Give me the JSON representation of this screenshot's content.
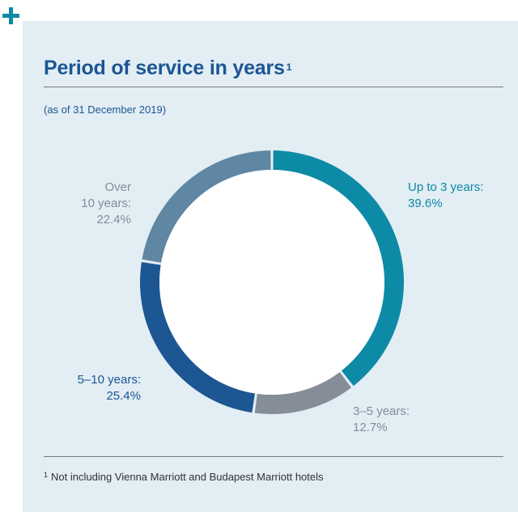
{
  "title": "Period of service in years",
  "title_footnote_ref": "1",
  "subtitle": "(as of 31 December 2019)",
  "footnote_ref": "1",
  "footnote": "Not including Vienna Marriott and Budapest Marriott hotels",
  "chart_data": {
    "type": "pie",
    "donut": true,
    "categories": [
      "Up to 3 years",
      "3–5 years",
      "5–10 years",
      "Over 10 years"
    ],
    "values": [
      39.6,
      12.7,
      25.4,
      22.4
    ],
    "unit": "%",
    "colors": [
      "#0d8aa6",
      "#858d98",
      "#1c5693",
      "#5f86a2"
    ],
    "label_colors": [
      "#0d8aa6",
      "#858d98",
      "#1c5693",
      "#858d98"
    ]
  },
  "labels": [
    {
      "lines": [
        "Up to 3 years:",
        "39.6%"
      ]
    },
    {
      "lines": [
        "3–5 years:",
        "12.7%"
      ]
    },
    {
      "lines": [
        "5–10 years:",
        "25.4%"
      ]
    },
    {
      "lines": [
        "Over",
        "10 years:",
        "22.4%"
      ]
    }
  ]
}
